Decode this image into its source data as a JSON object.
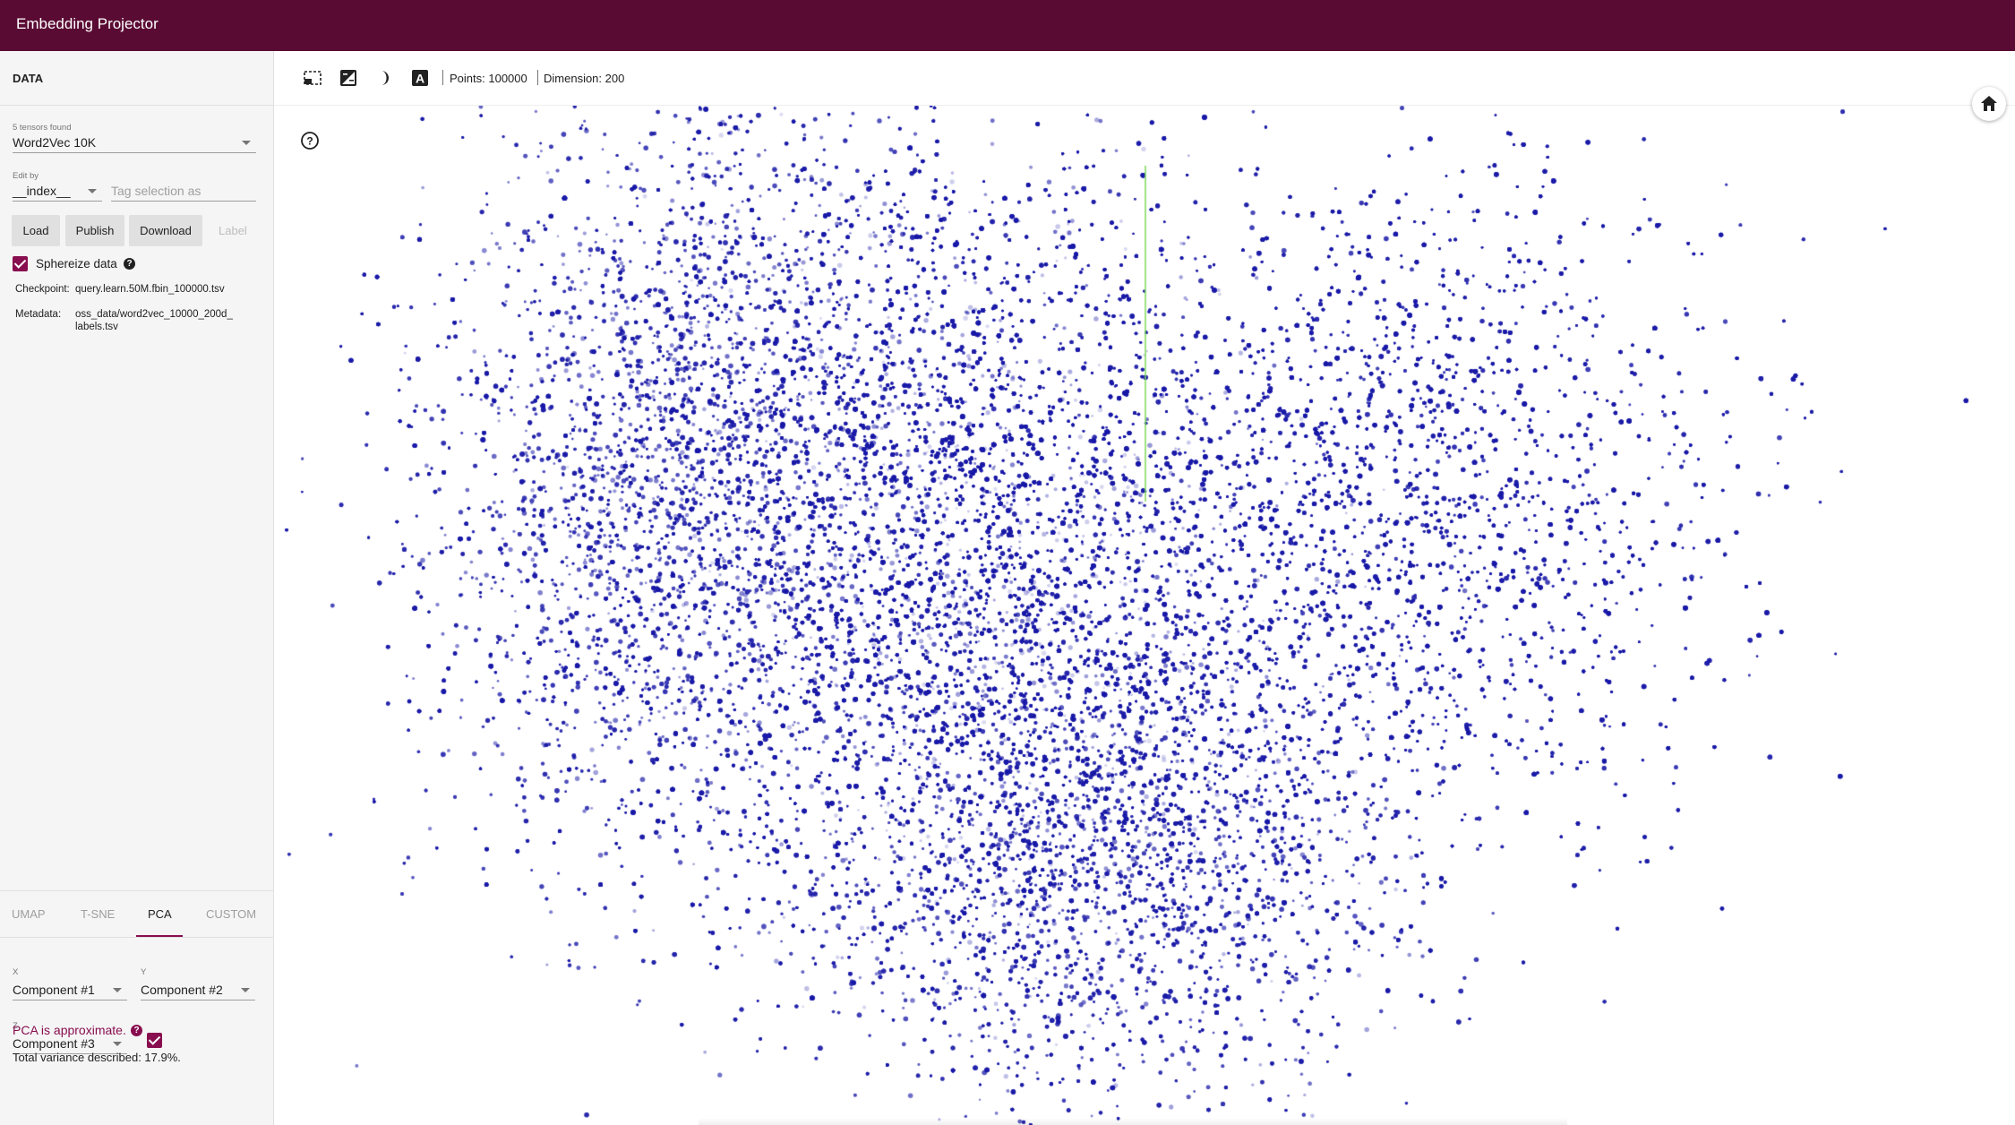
{
  "app": {
    "title": "Embedding Projector"
  },
  "sidebar": {
    "heading": "DATA",
    "tensors_label": "5 tensors found",
    "tensor_selected": "Word2Vec 10K",
    "edit_by_label": "Edit by",
    "edit_by_selected": "__index__",
    "tag_placeholder": "Tag selection as",
    "buttons": {
      "load": "Load",
      "publish": "Publish",
      "download": "Download",
      "label": "Label"
    },
    "sphereize_label": "Sphereize data",
    "sphereize_checked": true,
    "checkpoint_label": "Checkpoint:",
    "checkpoint_value": "query.learn.50M.fbin_100000.tsv",
    "metadata_label": "Metadata:",
    "metadata_value_line1": "oss_data/word2vec_10000_200d_",
    "metadata_value_line2": "labels.tsv"
  },
  "projection_tabs": [
    {
      "label": "UMAP",
      "active": false
    },
    {
      "label": "T-SNE",
      "active": false
    },
    {
      "label": "PCA",
      "active": true
    },
    {
      "label": "CUSTOM",
      "active": false
    }
  ],
  "pca": {
    "x_label": "X",
    "x_value": "Component #1",
    "y_label": "Y",
    "y_value": "Component #2",
    "z_label": "Z",
    "z_value": "Component #3",
    "z_enabled": true,
    "approx_note": "PCA is approximate.",
    "variance": "Total variance described: 17.9%."
  },
  "toolbar": {
    "icons": [
      "selection-icon",
      "night-mode-icon",
      "contrast-icon",
      "labels-icon"
    ],
    "points": "Points: 100000",
    "dimension": "Dimension: 200"
  },
  "colors": {
    "header": "#5a0b34",
    "accent": "#880e4f",
    "points": "#1a1aa8",
    "axis_line": "#7ed957"
  }
}
